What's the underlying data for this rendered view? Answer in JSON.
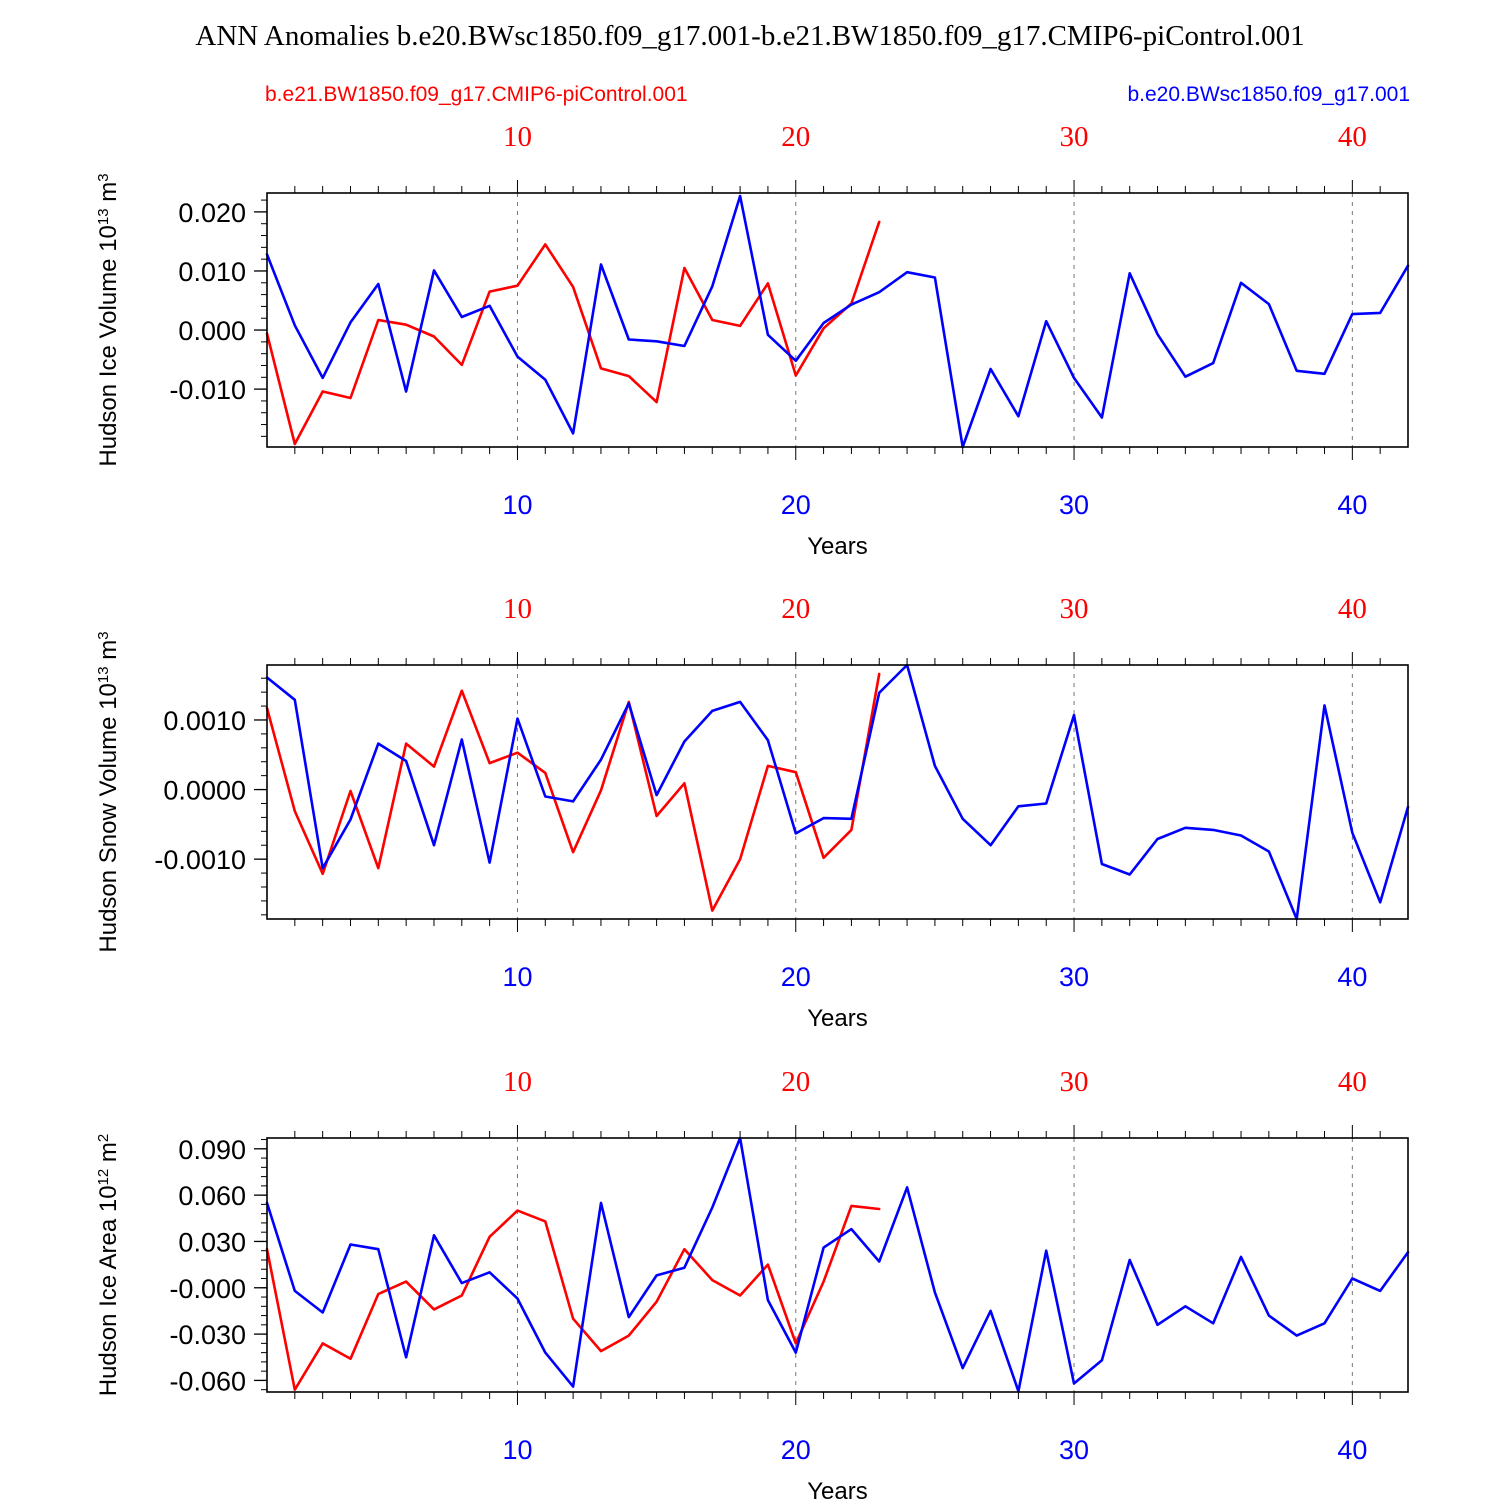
{
  "title": "ANN Anomalies b.e20.BWsc1850.f09_g17.001-b.e21.BW1850.f09_g17.CMIP6-piControl.001",
  "legend": {
    "left_label": "b.e21.BW1850.f09_g17.CMIP6-piControl.001",
    "right_label": "b.e20.BWsc1850.f09_g17.001"
  },
  "colors": {
    "control": "#ff0000",
    "experiment": "#0000ff",
    "axis": "#000000"
  },
  "chart_data": [
    {
      "type": "line",
      "title": "",
      "ylabel": "Hudson Ice Volume 10",
      "ylabel_sup": "13",
      "ylabel_unit": " m",
      "ylabel_unit_sup": "3",
      "xlabel": "Years",
      "xlim": [
        1,
        42
      ],
      "ylim": [
        -0.0198,
        0.0232
      ],
      "yticks": [
        -0.01,
        0.0,
        0.01,
        0.02
      ],
      "ytick_labels": [
        "-0.010",
        "0.000",
        "0.010",
        "0.020"
      ],
      "ytick_minor": 0.002,
      "xticks": [
        10,
        20,
        30,
        40
      ],
      "xtick_labels": [
        "10",
        "20",
        "30",
        "40"
      ],
      "grid": "dashed vertical",
      "series": [
        {
          "name": "b.e21.BW1850.f09_g17.CMIP6-piControl.001",
          "color": "#ff0000",
          "x": [
            1,
            2,
            3,
            4,
            5,
            6,
            7,
            8,
            9,
            10,
            11,
            12,
            13,
            14,
            15,
            16,
            17,
            18,
            19,
            20,
            21,
            22,
            23
          ],
          "values": [
            -0.0006,
            -0.0193,
            -0.0104,
            -0.0115,
            0.0017,
            0.0009,
            -0.0011,
            -0.0059,
            0.0065,
            0.0075,
            0.0145,
            0.0073,
            -0.0065,
            -0.0078,
            -0.0122,
            0.0105,
            0.0017,
            0.0007,
            0.0079,
            -0.0077,
            0.0003,
            0.0045,
            0.0183
          ]
        },
        {
          "name": "b.e20.BWsc1850.f09_g17.001",
          "color": "#0000ff",
          "x": [
            1,
            2,
            3,
            4,
            5,
            6,
            7,
            8,
            9,
            10,
            11,
            12,
            13,
            14,
            15,
            16,
            17,
            18,
            19,
            20,
            21,
            22,
            23,
            24,
            25,
            26,
            27,
            28,
            29,
            30,
            31,
            32,
            33,
            34,
            35,
            36,
            37,
            38,
            39,
            40,
            41,
            42
          ],
          "values": [
            0.0128,
            0.0008,
            -0.0081,
            0.0013,
            0.0078,
            -0.0104,
            0.0101,
            0.0022,
            0.0041,
            -0.0045,
            -0.0084,
            -0.0175,
            0.0111,
            -0.0016,
            -0.0019,
            -0.0027,
            0.0074,
            0.0227,
            -0.0008,
            -0.0052,
            0.0012,
            0.0043,
            0.0064,
            0.0098,
            0.0089,
            -0.0198,
            -0.0066,
            -0.0146,
            0.0015,
            -0.0081,
            -0.0148,
            0.0096,
            -0.0007,
            -0.0079,
            -0.0056,
            0.008,
            0.0044,
            -0.0069,
            -0.0074,
            0.0027,
            0.0029,
            0.0109
          ]
        }
      ]
    },
    {
      "type": "line",
      "title": "",
      "ylabel": "Hudson Snow Volume 10",
      "ylabel_sup": "13",
      "ylabel_unit": " m",
      "ylabel_unit_sup": "3",
      "xlabel": "Years",
      "xlim": [
        1,
        42
      ],
      "ylim": [
        -0.00186,
        0.00179
      ],
      "yticks": [
        -0.001,
        0.0,
        0.001
      ],
      "ytick_labels": [
        "-0.0010",
        "0.0000",
        "0.0010"
      ],
      "ytick_minor": 0.0002,
      "xticks": [
        10,
        20,
        30,
        40
      ],
      "xtick_labels": [
        "10",
        "20",
        "30",
        "40"
      ],
      "grid": "dashed vertical",
      "series": [
        {
          "name": "b.e21.BW1850.f09_g17.CMIP6-piControl.001",
          "color": "#ff0000",
          "x": [
            1,
            2,
            3,
            4,
            5,
            6,
            7,
            8,
            9,
            10,
            11,
            12,
            13,
            14,
            15,
            16,
            17,
            18,
            19,
            20,
            21,
            22,
            23
          ],
          "values": [
            0.00117,
            -0.00031,
            -0.00121,
            -2e-05,
            -0.00113,
            0.00066,
            0.00033,
            0.00142,
            0.00038,
            0.00053,
            0.00024,
            -0.0009,
            -1e-05,
            0.00126,
            -0.00038,
            9e-05,
            -0.00174,
            -0.001,
            0.00034,
            0.00025,
            -0.00098,
            -0.00058,
            0.00166
          ]
        },
        {
          "name": "b.e20.BWsc1850.f09_g17.001",
          "color": "#0000ff",
          "x": [
            1,
            2,
            3,
            4,
            5,
            6,
            7,
            8,
            9,
            10,
            11,
            12,
            13,
            14,
            15,
            16,
            17,
            18,
            19,
            20,
            21,
            22,
            23,
            24,
            25,
            26,
            27,
            28,
            29,
            30,
            31,
            32,
            33,
            34,
            35,
            36,
            37,
            38,
            39,
            40,
            41,
            42
          ],
          "values": [
            0.00161,
            0.00129,
            -0.00113,
            -0.00043,
            0.00066,
            0.00041,
            -0.0008,
            0.00072,
            -0.00105,
            0.00102,
            -0.0001,
            -0.00017,
            0.00043,
            0.00124,
            -8e-05,
            0.00069,
            0.00113,
            0.00126,
            0.00071,
            -0.00063,
            -0.00041,
            -0.00042,
            0.00139,
            0.00179,
            0.00034,
            -0.00042,
            -0.0008,
            -0.00024,
            -0.0002,
            0.00107,
            -0.00107,
            -0.00122,
            -0.00071,
            -0.00055,
            -0.00058,
            -0.00066,
            -0.00089,
            -0.00186,
            0.00121,
            -0.00062,
            -0.00162,
            -0.00025
          ]
        }
      ]
    },
    {
      "type": "line",
      "title": "",
      "ylabel": "Hudson Ice Area 10",
      "ylabel_sup": "12",
      "ylabel_unit": " m",
      "ylabel_unit_sup": "2",
      "xlabel": "Years",
      "xlim": [
        1,
        42
      ],
      "ylim": [
        -0.0675,
        0.097
      ],
      "yticks": [
        -0.06,
        -0.03,
        0.0,
        0.03,
        0.06,
        0.09
      ],
      "ytick_labels": [
        "-0.060",
        "-0.030",
        "-0.000",
        "0.030",
        "0.060",
        "0.090"
      ],
      "ytick_minor": 0.006,
      "xticks": [
        10,
        20,
        30,
        40
      ],
      "xtick_labels": [
        "10",
        "20",
        "30",
        "40"
      ],
      "grid": "dashed vertical",
      "series": [
        {
          "name": "b.e21.BW1850.f09_g17.CMIP6-piControl.001",
          "color": "#ff0000",
          "x": [
            1,
            2,
            3,
            4,
            5,
            6,
            7,
            8,
            9,
            10,
            11,
            12,
            13,
            14,
            15,
            16,
            17,
            18,
            19,
            20,
            21,
            22,
            23
          ],
          "values": [
            0.025,
            -0.066,
            -0.036,
            -0.046,
            -0.004,
            0.004,
            -0.014,
            -0.005,
            0.033,
            0.05,
            0.043,
            -0.02,
            -0.041,
            -0.031,
            -0.009,
            0.025,
            0.005,
            -0.005,
            0.015,
            -0.036,
            0.004,
            0.053,
            0.051
          ]
        },
        {
          "name": "b.e20.BWsc1850.f09_g17.001",
          "color": "#0000ff",
          "x": [
            1,
            2,
            3,
            4,
            5,
            6,
            7,
            8,
            9,
            10,
            11,
            12,
            13,
            14,
            15,
            16,
            17,
            18,
            19,
            20,
            21,
            22,
            23,
            24,
            25,
            26,
            27,
            28,
            29,
            30,
            31,
            32,
            33,
            34,
            35,
            36,
            37,
            38,
            39,
            40,
            41,
            42
          ],
          "values": [
            0.055,
            -0.002,
            -0.016,
            0.028,
            0.025,
            -0.045,
            0.034,
            0.003,
            0.01,
            -0.007,
            -0.042,
            -0.064,
            0.055,
            -0.019,
            0.008,
            0.013,
            0.052,
            0.097,
            -0.008,
            -0.042,
            0.026,
            0.038,
            0.017,
            0.065,
            -0.003,
            -0.052,
            -0.015,
            -0.067,
            0.024,
            -0.062,
            -0.047,
            0.018,
            -0.024,
            -0.012,
            -0.023,
            0.02,
            -0.018,
            -0.031,
            -0.023,
            0.006,
            -0.002,
            0.023
          ]
        }
      ]
    }
  ]
}
